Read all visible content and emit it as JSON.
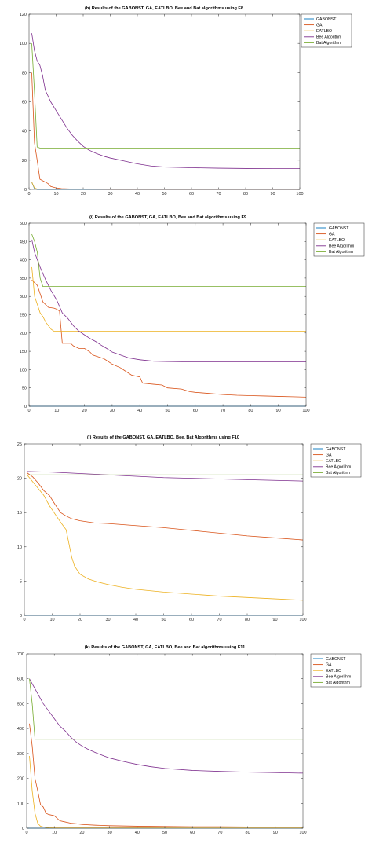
{
  "colors": {
    "GABONST": "#0072BD",
    "GA": "#D95319",
    "EATLBO": "#EDB120",
    "Bee": "#7E2F8E",
    "Bat": "#77AC30",
    "axis": "#262626",
    "frame": "#262626"
  },
  "chart_data": [
    {
      "type": "line",
      "title": "(h) Results of the GABONST, GA, EATLBO, Bee and Bat algorithms using F8",
      "xlim": [
        0,
        100
      ],
      "ylim": [
        0,
        120
      ],
      "xticks": [
        0,
        10,
        20,
        30,
        40,
        50,
        60,
        70,
        80,
        90,
        100
      ],
      "yticks": [
        0,
        20,
        40,
        60,
        80,
        100,
        120
      ],
      "legend_position": "top-right",
      "series": [
        {
          "name": "GABONST",
          "x": [
            1,
            2,
            3,
            100
          ],
          "y": [
            5,
            0.5,
            0,
            0
          ]
        },
        {
          "name": "GA",
          "x": [
            1,
            2,
            3,
            4,
            5,
            6,
            7,
            8,
            10,
            12,
            15,
            20,
            30,
            100
          ],
          "y": [
            80,
            32,
            20,
            7,
            6,
            5,
            4,
            2,
            1,
            0.5,
            0.3,
            0.2,
            0.1,
            0.1
          ]
        },
        {
          "name": "EATLBO",
          "x": [
            1,
            2,
            3,
            100
          ],
          "y": [
            5,
            1,
            0.3,
            0.2
          ]
        },
        {
          "name": "Bee Algorithm",
          "x": [
            1,
            2,
            3,
            4,
            5,
            6,
            8,
            10,
            12,
            14,
            16,
            18,
            20,
            22,
            25,
            28,
            30,
            35,
            40,
            45,
            50,
            60,
            70,
            80,
            90,
            100
          ],
          "y": [
            107,
            95,
            88,
            85,
            78,
            68,
            60,
            54,
            48,
            42,
            37,
            33,
            29.5,
            27,
            24.5,
            22.5,
            21.5,
            19.5,
            17.5,
            16,
            15.3,
            14.8,
            14.5,
            14.3,
            14.2,
            14.2
          ]
        },
        {
          "name": "Bat Algorithm",
          "x": [
            1,
            2,
            3,
            4,
            100
          ],
          "y": [
            100,
            67,
            29,
            28.3,
            28.3
          ]
        }
      ]
    },
    {
      "type": "line",
      "title": "(i) Results of the GABONST, GA, EATLBO, Bee and Bat algorithms using F9",
      "xlim": [
        0,
        100
      ],
      "ylim": [
        0,
        500
      ],
      "xticks": [
        0,
        10,
        20,
        30,
        40,
        50,
        60,
        70,
        80,
        90,
        100
      ],
      "yticks": [
        0,
        50,
        100,
        150,
        200,
        250,
        300,
        350,
        400,
        450,
        500
      ],
      "legend_position": "outside-right",
      "series": [
        {
          "name": "GABONST",
          "x": [
            0,
            100
          ],
          "y": [
            0,
            0
          ]
        },
        {
          "name": "GA",
          "x": [
            1,
            3,
            5,
            7,
            9,
            10,
            11,
            12,
            15,
            16,
            18,
            20,
            22,
            23,
            25,
            27,
            30,
            33,
            35,
            37,
            40,
            41,
            45,
            48,
            50,
            55,
            58,
            60,
            65,
            70,
            75,
            80,
            85,
            90,
            95,
            100
          ],
          "y": [
            345,
            330,
            285,
            270,
            268,
            265,
            260,
            172,
            172,
            165,
            158,
            158,
            148,
            140,
            135,
            130,
            115,
            105,
            95,
            85,
            80,
            63,
            60,
            58,
            50,
            47,
            40,
            38,
            35,
            32,
            30,
            29,
            28,
            27,
            26,
            25
          ]
        },
        {
          "name": "EATLBO",
          "x": [
            1,
            2,
            3,
            4,
            5,
            6,
            7,
            8,
            9,
            100
          ],
          "y": [
            380,
            300,
            278,
            255,
            245,
            230,
            220,
            210,
            205,
            205
          ]
        },
        {
          "name": "Bee Algorithm",
          "x": [
            1,
            2,
            4,
            6,
            8,
            10,
            12,
            14,
            16,
            18,
            20,
            22,
            24,
            26,
            28,
            30,
            33,
            36,
            40,
            45,
            50,
            60,
            70,
            80,
            90,
            100
          ],
          "y": [
            455,
            420,
            380,
            345,
            315,
            290,
            255,
            240,
            220,
            205,
            195,
            185,
            177,
            167,
            158,
            148,
            140,
            132,
            127,
            123,
            122,
            121,
            121,
            121,
            121,
            121
          ]
        },
        {
          "name": "Bat Algorithm",
          "x": [
            1,
            2,
            3,
            4,
            5,
            100
          ],
          "y": [
            470,
            450,
            420,
            350,
            327,
            327
          ]
        }
      ]
    },
    {
      "type": "line",
      "title": "(j) Results of the GABONST, GA, EATLBO, Bee, Bat Algorithms using F10",
      "xlim": [
        0,
        100
      ],
      "ylim": [
        0,
        25
      ],
      "xticks": [
        0,
        10,
        20,
        30,
        40,
        50,
        60,
        70,
        80,
        90,
        100
      ],
      "yticks": [
        0,
        5,
        10,
        15,
        20,
        25
      ],
      "legend_position": "outside-right",
      "series": [
        {
          "name": "GABONST",
          "x": [
            0,
            100
          ],
          "y": [
            0,
            0
          ]
        },
        {
          "name": "GA",
          "x": [
            1,
            3,
            5,
            7,
            9,
            11,
            13,
            15,
            17,
            20,
            25,
            30,
            40,
            50,
            60,
            70,
            80,
            90,
            100
          ],
          "y": [
            20.8,
            20.2,
            19.3,
            18.2,
            17.5,
            16.2,
            15.0,
            14.5,
            14.1,
            13.8,
            13.5,
            13.4,
            13.1,
            12.8,
            12.4,
            12.0,
            11.6,
            11.3,
            11.0
          ]
        },
        {
          "name": "EATLBO",
          "x": [
            1,
            3,
            5,
            7,
            9,
            11,
            13,
            15,
            16,
            17,
            18,
            20,
            23,
            26,
            30,
            35,
            40,
            50,
            60,
            70,
            80,
            90,
            100
          ],
          "y": [
            20.5,
            19.5,
            18.5,
            17.5,
            16.0,
            14.8,
            13.6,
            12.5,
            10.5,
            8.5,
            7.2,
            6.0,
            5.3,
            4.9,
            4.5,
            4.1,
            3.8,
            3.4,
            3.1,
            2.8,
            2.6,
            2.4,
            2.2
          ]
        },
        {
          "name": "Bee Algorithm",
          "x": [
            1,
            10,
            20,
            30,
            40,
            50,
            60,
            70,
            80,
            90,
            100
          ],
          "y": [
            21.0,
            20.9,
            20.7,
            20.5,
            20.3,
            20.1,
            20.0,
            19.9,
            19.8,
            19.7,
            19.6
          ]
        },
        {
          "name": "Bat Algorithm",
          "x": [
            1,
            100
          ],
          "y": [
            20.5,
            20.5
          ]
        }
      ]
    },
    {
      "type": "line",
      "title": "(k) Results of the GABONST, GA, EATLBO, Bee and Bat algorithms using F11",
      "xlim": [
        0,
        100
      ],
      "ylim": [
        0,
        700
      ],
      "xticks": [
        0,
        10,
        20,
        30,
        40,
        50,
        60,
        70,
        80,
        90,
        100
      ],
      "yticks": [
        0,
        100,
        200,
        300,
        400,
        500,
        600,
        700
      ],
      "legend_position": "outside-right",
      "series": [
        {
          "name": "GABONST",
          "x": [
            0,
            100
          ],
          "y": [
            0,
            0
          ]
        },
        {
          "name": "GA",
          "x": [
            1,
            2,
            3,
            4,
            5,
            6,
            7,
            8,
            10,
            12,
            14,
            16,
            18,
            20,
            25,
            30,
            40,
            50,
            60,
            70,
            80,
            90,
            100
          ],
          "y": [
            420,
            330,
            200,
            150,
            95,
            85,
            60,
            55,
            50,
            30,
            25,
            20,
            18,
            15,
            12,
            10,
            8,
            7,
            6,
            6,
            5,
            5,
            5
          ]
        },
        {
          "name": "EATLBO",
          "x": [
            1,
            2,
            3,
            4,
            5,
            6,
            7,
            8,
            10,
            100
          ],
          "y": [
            290,
            150,
            60,
            20,
            8,
            5,
            3,
            2,
            1,
            1
          ]
        },
        {
          "name": "Bee Algorithm",
          "x": [
            1,
            2,
            4,
            6,
            8,
            10,
            12,
            14,
            16,
            18,
            20,
            22,
            25,
            28,
            30,
            35,
            40,
            45,
            50,
            60,
            70,
            80,
            90,
            100
          ],
          "y": [
            600,
            580,
            540,
            500,
            470,
            440,
            410,
            390,
            365,
            345,
            330,
            318,
            303,
            290,
            282,
            268,
            256,
            247,
            240,
            232,
            228,
            225,
            223,
            221
          ]
        },
        {
          "name": "Bat Algorithm",
          "x": [
            1,
            2,
            3,
            100
          ],
          "y": [
            600,
            500,
            357,
            357
          ]
        }
      ]
    }
  ]
}
